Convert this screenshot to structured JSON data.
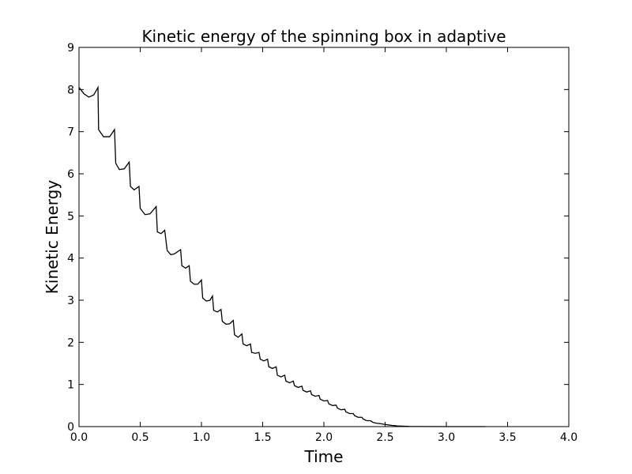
{
  "chart_data": {
    "type": "line",
    "title": "Kinetic energy of the spinning box in adaptive",
    "xlabel": "Time",
    "ylabel": "Kinetic Energy",
    "xlim": [
      0,
      4
    ],
    "ylim": [
      0,
      9
    ],
    "xticks": [
      "0.0",
      "0.5",
      "1.0",
      "1.5",
      "2.0",
      "2.5",
      "3.0",
      "3.5",
      "4.0"
    ],
    "yticks": [
      "0",
      "1",
      "2",
      "3",
      "4",
      "5",
      "6",
      "7",
      "8",
      "9"
    ],
    "grid": false,
    "line_color": "#000000",
    "series": [
      {
        "values": [
          [
            0.0,
            8.05
          ],
          [
            0.04,
            7.9
          ],
          [
            0.08,
            7.82
          ],
          [
            0.12,
            7.87
          ],
          [
            0.155,
            8.05
          ],
          [
            0.16,
            7.05
          ],
          [
            0.2,
            6.88
          ],
          [
            0.25,
            6.88
          ],
          [
            0.29,
            7.05
          ],
          [
            0.3,
            6.25
          ],
          [
            0.33,
            6.1
          ],
          [
            0.37,
            6.12
          ],
          [
            0.41,
            6.28
          ],
          [
            0.42,
            5.7
          ],
          [
            0.45,
            5.62
          ],
          [
            0.49,
            5.7
          ],
          [
            0.5,
            5.18
          ],
          [
            0.54,
            5.03
          ],
          [
            0.58,
            5.05
          ],
          [
            0.63,
            5.22
          ],
          [
            0.64,
            4.62
          ],
          [
            0.67,
            4.58
          ],
          [
            0.7,
            4.66
          ],
          [
            0.72,
            4.18
          ],
          [
            0.75,
            4.08
          ],
          [
            0.78,
            4.1
          ],
          [
            0.83,
            4.2
          ],
          [
            0.84,
            3.82
          ],
          [
            0.87,
            3.76
          ],
          [
            0.9,
            3.82
          ],
          [
            0.91,
            3.45
          ],
          [
            0.94,
            3.38
          ],
          [
            0.97,
            3.38
          ],
          [
            1.0,
            3.48
          ],
          [
            1.01,
            3.05
          ],
          [
            1.04,
            2.98
          ],
          [
            1.07,
            3.0
          ],
          [
            1.09,
            3.1
          ],
          [
            1.1,
            2.76
          ],
          [
            1.13,
            2.72
          ],
          [
            1.16,
            2.78
          ],
          [
            1.17,
            2.5
          ],
          [
            1.2,
            2.43
          ],
          [
            1.23,
            2.44
          ],
          [
            1.26,
            2.52
          ],
          [
            1.27,
            2.18
          ],
          [
            1.3,
            2.12
          ],
          [
            1.33,
            2.2
          ],
          [
            1.34,
            1.96
          ],
          [
            1.37,
            1.92
          ],
          [
            1.4,
            1.96
          ],
          [
            1.41,
            1.76
          ],
          [
            1.44,
            1.74
          ],
          [
            1.47,
            1.76
          ],
          [
            1.48,
            1.6
          ],
          [
            1.51,
            1.56
          ],
          [
            1.54,
            1.6
          ],
          [
            1.55,
            1.42
          ],
          [
            1.58,
            1.38
          ],
          [
            1.61,
            1.42
          ],
          [
            1.62,
            1.22
          ],
          [
            1.65,
            1.18
          ],
          [
            1.68,
            1.22
          ],
          [
            1.69,
            1.08
          ],
          [
            1.72,
            1.04
          ],
          [
            1.75,
            1.08
          ],
          [
            1.76,
            0.97
          ],
          [
            1.79,
            0.93
          ],
          [
            1.82,
            0.96
          ],
          [
            1.83,
            0.86
          ],
          [
            1.86,
            0.82
          ],
          [
            1.89,
            0.85
          ],
          [
            1.9,
            0.76
          ],
          [
            1.93,
            0.72
          ],
          [
            1.96,
            0.74
          ],
          [
            1.97,
            0.65
          ],
          [
            2.0,
            0.61
          ],
          [
            2.03,
            0.62
          ],
          [
            2.04,
            0.54
          ],
          [
            2.07,
            0.5
          ],
          [
            2.1,
            0.51
          ],
          [
            2.11,
            0.44
          ],
          [
            2.14,
            0.4
          ],
          [
            2.17,
            0.41
          ],
          [
            2.18,
            0.35
          ],
          [
            2.21,
            0.31
          ],
          [
            2.24,
            0.31
          ],
          [
            2.25,
            0.26
          ],
          [
            2.28,
            0.22
          ],
          [
            2.31,
            0.22
          ],
          [
            2.32,
            0.18
          ],
          [
            2.35,
            0.14
          ],
          [
            2.38,
            0.14
          ],
          [
            2.4,
            0.1
          ],
          [
            2.43,
            0.08
          ],
          [
            2.46,
            0.07
          ],
          [
            2.5,
            0.05
          ],
          [
            2.55,
            0.03
          ],
          [
            2.6,
            0.015
          ],
          [
            2.7,
            0.005
          ],
          [
            2.8,
            0.002
          ],
          [
            3.0,
            0.0
          ],
          [
            3.32,
            0.0
          ]
        ]
      }
    ]
  }
}
